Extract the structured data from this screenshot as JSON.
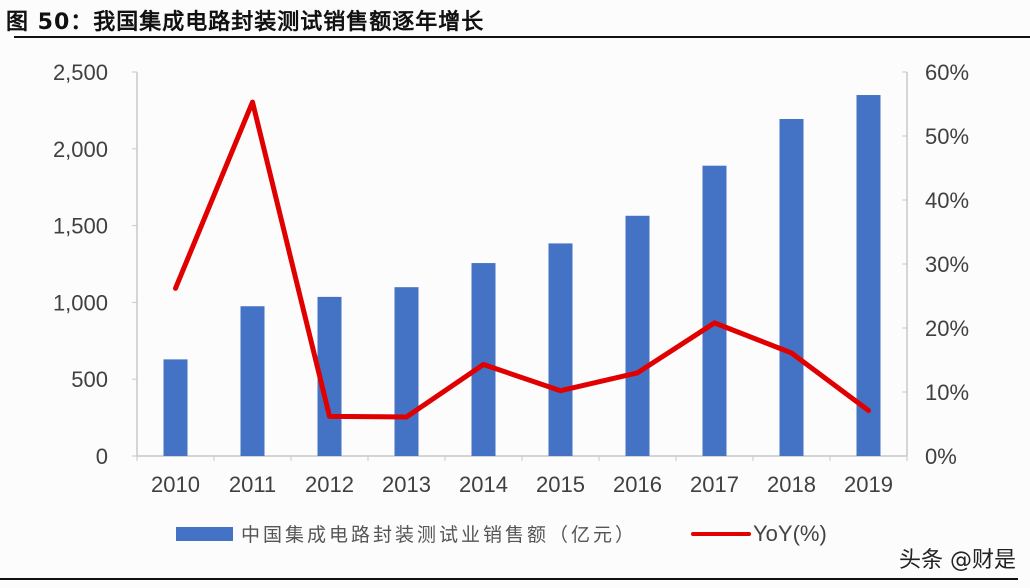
{
  "title": "图 50：我国集成电路封装测试销售额逐年增长",
  "watermark": "头条 @财是",
  "legend": {
    "bar_label": "中国集成电路封装测试业销售额（亿元）",
    "line_label": "YoY(%)"
  },
  "colors": {
    "bar": "#4472c4",
    "line": "#e00000",
    "axis": "#c8c8c8"
  },
  "chart_data": {
    "type": "bar+line",
    "title": "图 50：我国集成电路封装测试销售额逐年增长",
    "categories": [
      "2010",
      "2011",
      "2012",
      "2013",
      "2014",
      "2015",
      "2016",
      "2017",
      "2018",
      "2019"
    ],
    "series": [
      {
        "name": "中国集成电路封装测试业销售额（亿元）",
        "type": "bar",
        "axis": "left",
        "values": [
          629,
          975,
          1036,
          1099,
          1256,
          1384,
          1564,
          1890,
          2194,
          2350
        ]
      },
      {
        "name": "YoY(%)",
        "type": "line",
        "axis": "right",
        "values": [
          26.2,
          55.3,
          6.2,
          6.1,
          14.3,
          10.2,
          13.0,
          20.8,
          16.1,
          7.1
        ]
      }
    ],
    "left_axis": {
      "ylim": [
        0,
        2500
      ],
      "ticks": [
        "0",
        "500",
        "1,000",
        "1,500",
        "2,000",
        "2,500"
      ]
    },
    "right_axis": {
      "ylim": [
        0,
        60
      ],
      "ticks": [
        "0%",
        "10%",
        "20%",
        "30%",
        "40%",
        "50%",
        "60%"
      ]
    },
    "xlabel": "",
    "ylabel": "",
    "grid": false,
    "legend_position": "bottom"
  }
}
